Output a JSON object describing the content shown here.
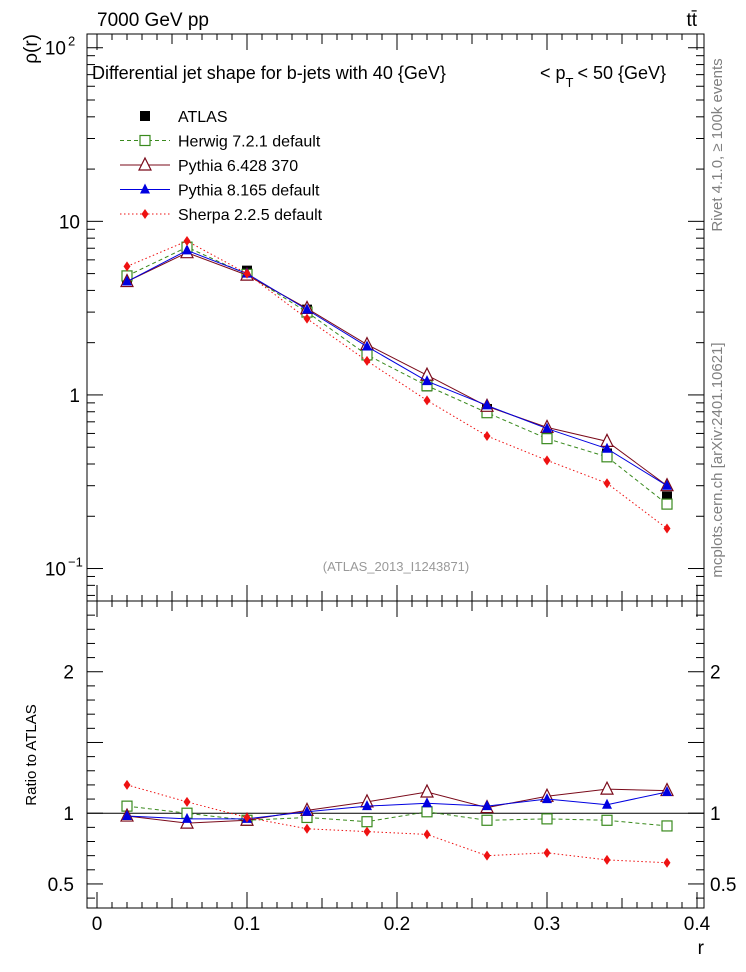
{
  "header": {
    "energy_label": "7000 GeV pp",
    "process_label": "tt̄"
  },
  "side_labels": {
    "rivet": "Rivet 4.1.0, ≥ 100k events",
    "mcplots": "mcplots.cern.ch [arXiv:2401.10621]"
  },
  "chart_data": [
    {
      "type": "line",
      "scale": "log",
      "title": "Differential jet shape for b-jets with 40 {GeV}    < p_T < 50 {GeV}",
      "title_parts": {
        "main": "Differential jet shape for b-jets with 40 {GeV}",
        "lt": "< p",
        "sub": "T",
        "rest": "< 50 {GeV}"
      },
      "xlabel": "r",
      "ylabel": "ρ(r)",
      "xlim": [
        0,
        0.4
      ],
      "ylim": [
        0.065,
        120
      ],
      "yticks": [
        {
          "value": 100,
          "base": "10",
          "exp": "2"
        },
        {
          "value": 10,
          "base": "10",
          "exp": ""
        },
        {
          "value": 1,
          "base": "1",
          "exp": ""
        },
        {
          "value": 0.1,
          "base": "10",
          "exp": "−1"
        }
      ],
      "watermark": "(ATLAS_2013_I1243871)",
      "x": [
        0.02,
        0.06,
        0.1,
        0.14,
        0.18,
        0.22,
        0.26,
        0.3,
        0.34,
        0.38
      ],
      "series": [
        {
          "name": "ATLAS",
          "color": "#000000",
          "marker": "square-filled",
          "line": "none",
          "values": [
            4.6,
            7.1,
            5.2,
            3.1,
            1.8,
            1.12,
            0.83,
            0.58,
            0.46,
            0.26
          ]
        },
        {
          "name": "Herwig 7.2.1 default",
          "color": "#3a8a1e",
          "marker": "square-open",
          "line": "dashed",
          "values": [
            4.85,
            7.1,
            4.95,
            3.0,
            1.7,
            1.13,
            0.79,
            0.56,
            0.44,
            0.235
          ]
        },
        {
          "name": "Pythia 6.428 370",
          "color": "#7a0a1a",
          "marker": "triangle-open",
          "line": "solid",
          "values": [
            4.5,
            6.6,
            4.9,
            3.15,
            1.95,
            1.3,
            0.86,
            0.65,
            0.54,
            0.3
          ]
        },
        {
          "name": "Pythia 8.165 default",
          "color": "#0000e0",
          "marker": "triangle-filled",
          "line": "solid",
          "values": [
            4.5,
            6.8,
            5.0,
            3.1,
            1.9,
            1.2,
            0.87,
            0.64,
            0.49,
            0.3
          ]
        },
        {
          "name": "Sherpa 2.2.5 default",
          "color": "#ee1111",
          "marker": "diamond-filled",
          "line": "dotted",
          "values": [
            5.5,
            7.7,
            5.0,
            2.75,
            1.57,
            0.93,
            0.58,
            0.42,
            0.31,
            0.17
          ]
        }
      ]
    },
    {
      "type": "line",
      "scale": "linear",
      "xlabel": "r",
      "ylabel": "Ratio to ATLAS",
      "xlim": [
        0,
        0.4
      ],
      "ylim": [
        0.33,
        2.5
      ],
      "xticks": [
        "0",
        "0.1",
        "0.2",
        "0.3",
        "0.4"
      ],
      "yticks": [
        "2",
        "1",
        "0.5"
      ],
      "x": [
        0.02,
        0.06,
        0.1,
        0.14,
        0.18,
        0.22,
        0.26,
        0.3,
        0.34,
        0.38
      ],
      "series": [
        {
          "name": "Herwig 7.2.1 default",
          "values": [
            1.05,
            1.0,
            0.95,
            0.97,
            0.94,
            1.01,
            0.95,
            0.96,
            0.95,
            0.91
          ]
        },
        {
          "name": "Pythia 6.428 370",
          "values": [
            0.98,
            0.93,
            0.95,
            1.02,
            1.08,
            1.15,
            1.04,
            1.12,
            1.17,
            1.16
          ]
        },
        {
          "name": "Pythia 8.165 default",
          "values": [
            0.98,
            0.96,
            0.96,
            1.01,
            1.05,
            1.07,
            1.05,
            1.1,
            1.06,
            1.15
          ]
        },
        {
          "name": "Sherpa 2.2.5 default",
          "values": [
            1.2,
            1.08,
            0.97,
            0.89,
            0.87,
            0.85,
            0.7,
            0.72,
            0.67,
            0.65
          ]
        }
      ]
    }
  ]
}
